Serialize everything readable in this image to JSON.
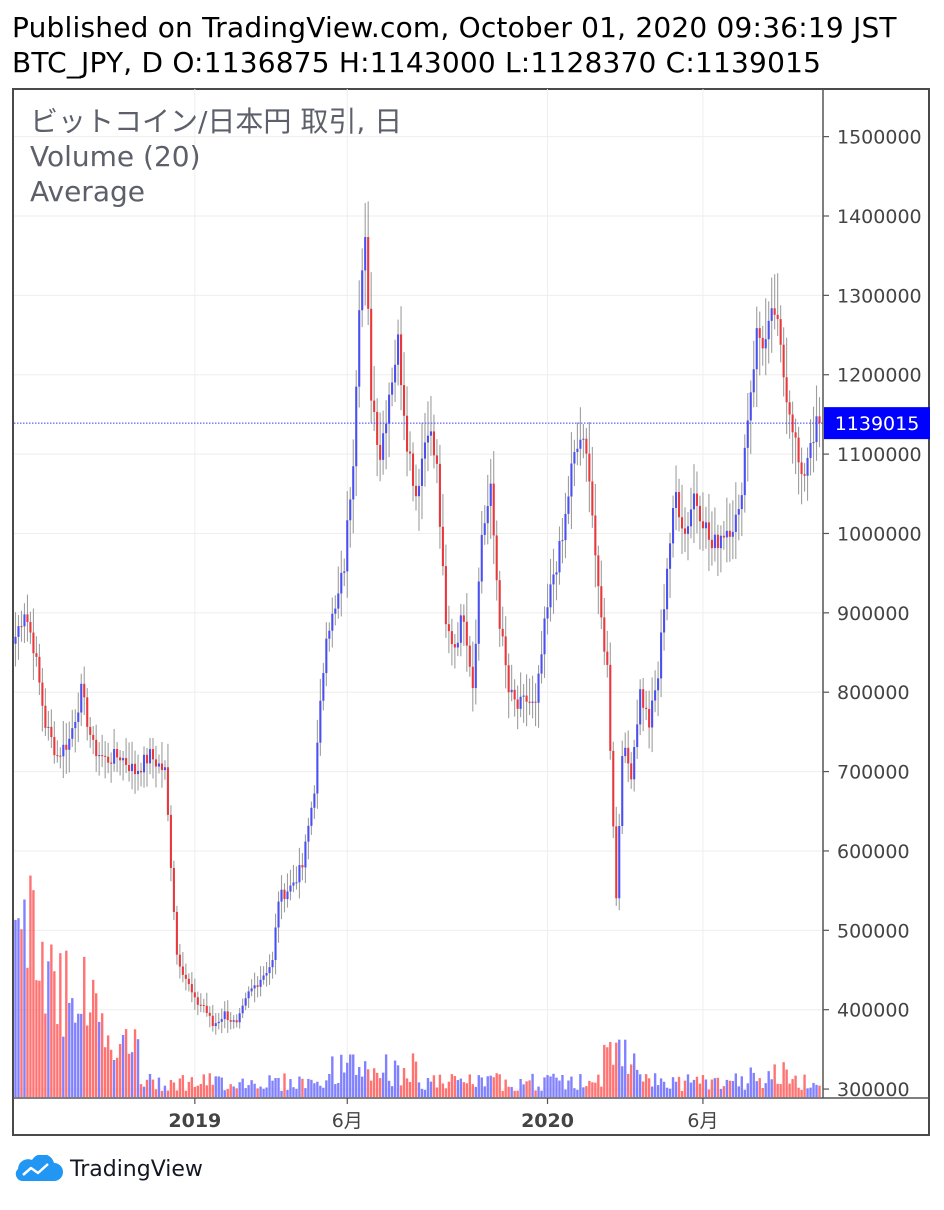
{
  "header": {
    "published": "Published on TradingView.com, October 01, 2020 09:36:19 JST",
    "ohlc": "BTC_JPY, D O:1136875 H:1143000 L:1128370 C:1139015"
  },
  "legend": {
    "symbol": "ビットコイン/日本円 取引, 日",
    "volume": "Volume (20)",
    "average": "Average"
  },
  "footer": {
    "brand": "TradingView",
    "logo_icon": "tradingview-cloud-logo"
  },
  "colors": {
    "up": "#4a50f0",
    "down": "#e8383c",
    "wick": "#9e9e9e",
    "vol_up": "#6b6bff",
    "vol_down": "#ff5a5a",
    "price_line": "#3d3dff",
    "price_label_bg": "#0000ff"
  },
  "chart_data": {
    "type": "candlestick",
    "symbol": "BTC_JPY",
    "interval": "D",
    "last_price": 1139015,
    "last_price_label": "1139015",
    "ylim": [
      290000,
      1560000
    ],
    "y_ticks": [
      "1500000",
      "1400000",
      "1300000",
      "1200000",
      "1100000",
      "1000000",
      "900000",
      "800000",
      "700000",
      "600000",
      "500000",
      "400000",
      "300000"
    ],
    "x_ticks": [
      {
        "label": "2019",
        "bold": true,
        "index": 60
      },
      {
        "label": "6月",
        "bold": false,
        "index": 111
      },
      {
        "label": "2020",
        "bold": true,
        "index": 178
      },
      {
        "label": "6月",
        "bold": false,
        "index": 230
      }
    ],
    "close_path": [
      [
        0,
        870000
      ],
      [
        3,
        905000
      ],
      [
        6,
        860000
      ],
      [
        10,
        760000
      ],
      [
        14,
        720000
      ],
      [
        18,
        740000
      ],
      [
        22,
        800000
      ],
      [
        26,
        730000
      ],
      [
        30,
        715000
      ],
      [
        35,
        720000
      ],
      [
        40,
        700000
      ],
      [
        45,
        720000
      ],
      [
        50,
        700000
      ],
      [
        54,
        470000
      ],
      [
        57,
        440000
      ],
      [
        60,
        410000
      ],
      [
        63,
        405000
      ],
      [
        66,
        380000
      ],
      [
        70,
        395000
      ],
      [
        74,
        380000
      ],
      [
        78,
        420000
      ],
      [
        82,
        440000
      ],
      [
        86,
        460000
      ],
      [
        88,
        540000
      ],
      [
        92,
        555000
      ],
      [
        96,
        580000
      ],
      [
        100,
        680000
      ],
      [
        104,
        880000
      ],
      [
        107,
        900000
      ],
      [
        110,
        960000
      ],
      [
        113,
        1100000
      ],
      [
        115,
        1300000
      ],
      [
        117,
        1360000
      ],
      [
        119,
        1180000
      ],
      [
        122,
        1100000
      ],
      [
        125,
        1180000
      ],
      [
        128,
        1240000
      ],
      [
        131,
        1120000
      ],
      [
        134,
        1050000
      ],
      [
        138,
        1140000
      ],
      [
        141,
        1080000
      ],
      [
        144,
        880000
      ],
      [
        147,
        860000
      ],
      [
        150,
        900000
      ],
      [
        153,
        810000
      ],
      [
        156,
        1000000
      ],
      [
        159,
        1050000
      ],
      [
        162,
        890000
      ],
      [
        165,
        800000
      ],
      [
        168,
        780000
      ],
      [
        171,
        790000
      ],
      [
        174,
        780000
      ],
      [
        177,
        880000
      ],
      [
        180,
        950000
      ],
      [
        183,
        990000
      ],
      [
        186,
        1080000
      ],
      [
        189,
        1120000
      ],
      [
        192,
        1080000
      ],
      [
        195,
        920000
      ],
      [
        198,
        830000
      ],
      [
        201,
        540000
      ],
      [
        203,
        730000
      ],
      [
        206,
        700000
      ],
      [
        209,
        800000
      ],
      [
        212,
        760000
      ],
      [
        215,
        820000
      ],
      [
        218,
        960000
      ],
      [
        221,
        1050000
      ],
      [
        224,
        1000000
      ],
      [
        227,
        1050000
      ],
      [
        230,
        1020000
      ],
      [
        233,
        980000
      ],
      [
        236,
        1000000
      ],
      [
        239,
        1010000
      ],
      [
        242,
        1020000
      ],
      [
        245,
        1150000
      ],
      [
        248,
        1250000
      ],
      [
        251,
        1240000
      ],
      [
        254,
        1280000
      ],
      [
        257,
        1200000
      ],
      [
        260,
        1140000
      ],
      [
        263,
        1060000
      ],
      [
        266,
        1120000
      ],
      [
        269,
        1140000
      ]
    ]
  }
}
